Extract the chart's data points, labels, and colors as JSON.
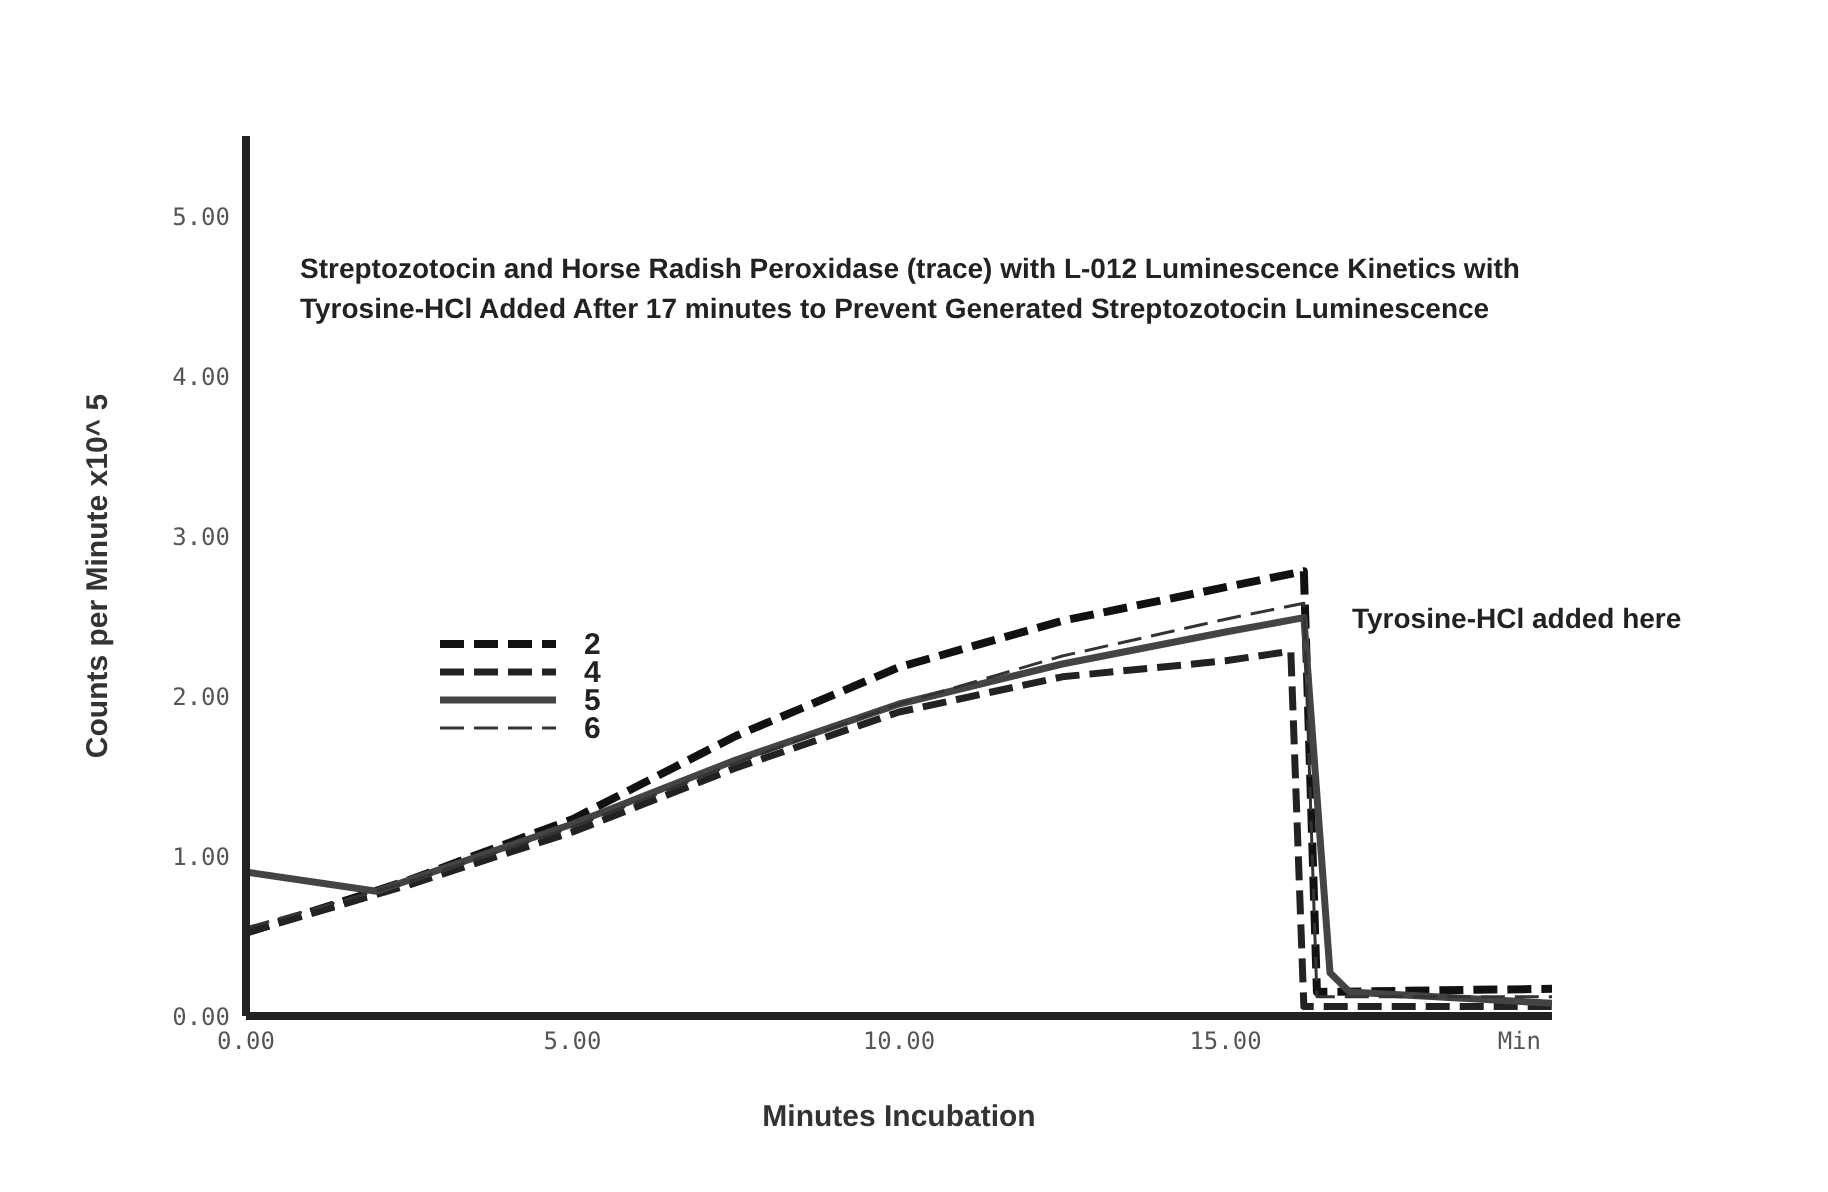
{
  "chart_data": {
    "type": "line",
    "title": "Streptozotocin and Horse Radish Peroxidase (trace) with L-012 Luminescence Kinetics with Tyrosine-HCl Added After 17 minutes to Prevent Generated Streptozotocin Luminescence",
    "xlabel": "Minutes Incubation",
    "ylabel": "Counts per Minute x10^ 5",
    "series": [
      {
        "name": "2",
        "color": "#111111",
        "line_style": "dashed",
        "x": [
          0,
          2.5,
          5,
          7.5,
          10,
          12.5,
          15,
          16.2,
          16.4,
          20
        ],
        "values": [
          0.52,
          0.85,
          1.23,
          1.75,
          2.18,
          2.47,
          2.68,
          2.78,
          0.15,
          0.17
        ]
      },
      {
        "name": "4",
        "color": "#222222",
        "line_style": "dashed",
        "x": [
          0,
          2.5,
          5,
          7.5,
          10,
          12.5,
          15,
          16,
          16.2,
          20
        ],
        "values": [
          0.52,
          0.82,
          1.15,
          1.55,
          1.9,
          2.12,
          2.22,
          2.28,
          0.06,
          0.06
        ]
      },
      {
        "name": "5",
        "color": "#444444",
        "line_style": "solid",
        "x": [
          0,
          2,
          5,
          7.5,
          10,
          12.5,
          15,
          16.2,
          16.6,
          16.9,
          20
        ],
        "values": [
          0.9,
          0.78,
          1.2,
          1.6,
          1.95,
          2.2,
          2.4,
          2.49,
          0.27,
          0.15,
          0.08
        ]
      },
      {
        "name": "6",
        "color": "#333333",
        "line_style": "dashed",
        "x": [
          0,
          2.5,
          5,
          7.5,
          10,
          12.5,
          15,
          16.2,
          16.4,
          20
        ],
        "values": [
          0.55,
          0.84,
          1.18,
          1.58,
          1.95,
          2.25,
          2.48,
          2.58,
          0.12,
          0.12
        ]
      }
    ],
    "annotations": [
      "Tyrosine-HCl added here"
    ],
    "xlim": [
      0,
      20
    ],
    "xticks": [
      {
        "value": 0,
        "label": "0.00"
      },
      {
        "value": 5,
        "label": "5.00"
      },
      {
        "value": 10,
        "label": "10.00"
      },
      {
        "value": 15,
        "label": "15.00"
      },
      {
        "value": 19.5,
        "label": "Min"
      }
    ],
    "ylim": [
      0,
      5.5
    ],
    "yticks": [
      {
        "value": 0,
        "label": "0.00"
      },
      {
        "value": 1,
        "label": "1.00"
      },
      {
        "value": 2,
        "label": "2.00"
      },
      {
        "value": 3,
        "label": "3.00"
      },
      {
        "value": 4,
        "label": "4.00"
      },
      {
        "value": 5,
        "label": "5.00"
      }
    ],
    "grid": false,
    "legend": "left",
    "marker": "none"
  }
}
